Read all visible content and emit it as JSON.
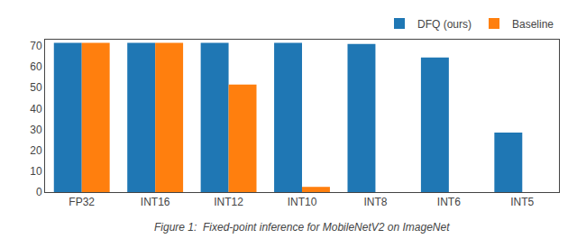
{
  "chart_data": {
    "type": "bar",
    "categories": [
      "FP32",
      "INT16",
      "INT12",
      "INT10",
      "INT8",
      "INT6",
      "INT5"
    ],
    "series": [
      {
        "name": "DFQ (ours)",
        "color": "#1f77b4",
        "values": [
          71.5,
          71.5,
          71.5,
          71.5,
          71.0,
          64.5,
          28.5
        ]
      },
      {
        "name": "Baseline",
        "color": "#ff7f0e",
        "values": [
          71.5,
          71.5,
          51.5,
          2.5,
          0.0,
          0.0,
          0.0
        ]
      }
    ],
    "ylim": [
      0,
      73
    ],
    "yticks": [
      0,
      10,
      20,
      30,
      40,
      50,
      60,
      70
    ],
    "legend": "upper right",
    "grid": false,
    "annotations": [
      {
        "text": "Figure 1:  Fixed-point inference for MobileNetV2 on ImageNet"
      }
    ]
  }
}
